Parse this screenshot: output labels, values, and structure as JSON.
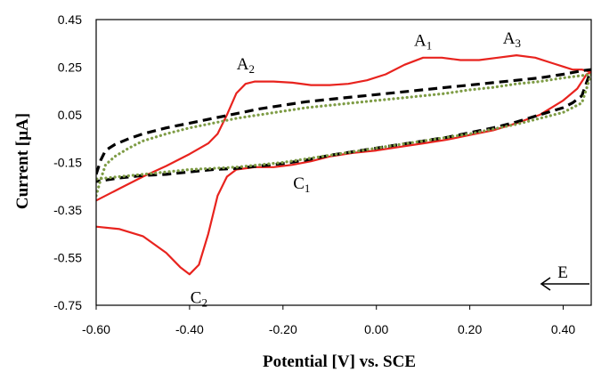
{
  "chart_data": {
    "type": "line",
    "title": "",
    "xlabel": "Potential [V] vs. SCE",
    "ylabel": "Current [µA]",
    "xlim": [
      -0.6,
      0.46
    ],
    "ylim": [
      -0.75,
      0.45
    ],
    "x_ticks": [
      "-0.60",
      "-0.40",
      "-0.20",
      "0.00",
      "0.20",
      "0.40"
    ],
    "x_tick_values": [
      -0.6,
      -0.4,
      -0.2,
      0.0,
      0.2,
      0.4
    ],
    "y_ticks": [
      "0.45",
      "0.25",
      "0.05",
      "-0.15",
      "-0.35",
      "-0.55",
      "-0.75"
    ],
    "y_tick_values": [
      0.45,
      0.25,
      0.05,
      -0.15,
      -0.35,
      -0.55,
      -0.75
    ],
    "grid": false,
    "series": [
      {
        "color": "#e8231e",
        "style": "solid",
        "points": [
          [
            -0.6,
            -0.42
          ],
          [
            -0.55,
            -0.43
          ],
          [
            -0.5,
            -0.46
          ],
          [
            -0.45,
            -0.53
          ],
          [
            -0.42,
            -0.59
          ],
          [
            -0.4,
            -0.62
          ],
          [
            -0.38,
            -0.58
          ],
          [
            -0.36,
            -0.45
          ],
          [
            -0.34,
            -0.29
          ],
          [
            -0.32,
            -0.21
          ],
          [
            -0.3,
            -0.18
          ],
          [
            -0.26,
            -0.17
          ],
          [
            -0.22,
            -0.17
          ],
          [
            -0.18,
            -0.16
          ],
          [
            -0.14,
            -0.145
          ],
          [
            -0.1,
            -0.125
          ],
          [
            -0.05,
            -0.11
          ],
          [
            0.0,
            -0.1
          ],
          [
            0.05,
            -0.085
          ],
          [
            0.1,
            -0.07
          ],
          [
            0.15,
            -0.055
          ],
          [
            0.2,
            -0.035
          ],
          [
            0.25,
            -0.015
          ],
          [
            0.3,
            0.015
          ],
          [
            0.35,
            0.05
          ],
          [
            0.4,
            0.11
          ],
          [
            0.43,
            0.16
          ],
          [
            0.45,
            0.22
          ],
          [
            0.46,
            0.23
          ],
          [
            0.44,
            0.24
          ],
          [
            0.42,
            0.24
          ],
          [
            0.38,
            0.265
          ],
          [
            0.34,
            0.29
          ],
          [
            0.3,
            0.3
          ],
          [
            0.26,
            0.29
          ],
          [
            0.22,
            0.28
          ],
          [
            0.18,
            0.28
          ],
          [
            0.14,
            0.29
          ],
          [
            0.1,
            0.29
          ],
          [
            0.06,
            0.26
          ],
          [
            0.02,
            0.22
          ],
          [
            -0.02,
            0.195
          ],
          [
            -0.06,
            0.18
          ],
          [
            -0.1,
            0.175
          ],
          [
            -0.14,
            0.175
          ],
          [
            -0.18,
            0.185
          ],
          [
            -0.22,
            0.19
          ],
          [
            -0.26,
            0.19
          ],
          [
            -0.28,
            0.18
          ],
          [
            -0.3,
            0.14
          ],
          [
            -0.32,
            0.05
          ],
          [
            -0.34,
            -0.03
          ],
          [
            -0.36,
            -0.07
          ],
          [
            -0.4,
            -0.115
          ],
          [
            -0.45,
            -0.165
          ],
          [
            -0.5,
            -0.21
          ],
          [
            -0.55,
            -0.26
          ],
          [
            -0.6,
            -0.31
          ]
        ]
      },
      {
        "color": "#000000",
        "style": "dashed",
        "points": [
          [
            -0.6,
            -0.2
          ],
          [
            -0.59,
            -0.14
          ],
          [
            -0.58,
            -0.1
          ],
          [
            -0.56,
            -0.075
          ],
          [
            -0.53,
            -0.05
          ],
          [
            -0.5,
            -0.03
          ],
          [
            -0.45,
            -0.005
          ],
          [
            -0.4,
            0.015
          ],
          [
            -0.35,
            0.035
          ],
          [
            -0.3,
            0.055
          ],
          [
            -0.25,
            0.075
          ],
          [
            -0.2,
            0.09
          ],
          [
            -0.15,
            0.105
          ],
          [
            -0.1,
            0.115
          ],
          [
            -0.05,
            0.125
          ],
          [
            0.0,
            0.135
          ],
          [
            0.05,
            0.145
          ],
          [
            0.1,
            0.155
          ],
          [
            0.15,
            0.165
          ],
          [
            0.2,
            0.175
          ],
          [
            0.25,
            0.185
          ],
          [
            0.3,
            0.195
          ],
          [
            0.35,
            0.205
          ],
          [
            0.4,
            0.22
          ],
          [
            0.44,
            0.235
          ],
          [
            0.46,
            0.24
          ],
          [
            0.44,
            0.13
          ],
          [
            0.42,
            0.1
          ],
          [
            0.4,
            0.08
          ],
          [
            0.35,
            0.05
          ],
          [
            0.3,
            0.02
          ],
          [
            0.25,
            -0.005
          ],
          [
            0.2,
            -0.025
          ],
          [
            0.15,
            -0.045
          ],
          [
            0.1,
            -0.06
          ],
          [
            0.05,
            -0.075
          ],
          [
            0.0,
            -0.09
          ],
          [
            -0.05,
            -0.105
          ],
          [
            -0.1,
            -0.12
          ],
          [
            -0.15,
            -0.14
          ],
          [
            -0.2,
            -0.155
          ],
          [
            -0.25,
            -0.165
          ],
          [
            -0.3,
            -0.175
          ],
          [
            -0.35,
            -0.18
          ],
          [
            -0.4,
            -0.19
          ],
          [
            -0.45,
            -0.2
          ],
          [
            -0.5,
            -0.205
          ],
          [
            -0.55,
            -0.215
          ],
          [
            -0.6,
            -0.23
          ]
        ]
      },
      {
        "color": "#7e9c45",
        "style": "dotted",
        "points": [
          [
            -0.6,
            -0.29
          ],
          [
            -0.59,
            -0.22
          ],
          [
            -0.58,
            -0.16
          ],
          [
            -0.56,
            -0.125
          ],
          [
            -0.53,
            -0.09
          ],
          [
            -0.5,
            -0.06
          ],
          [
            -0.45,
            -0.03
          ],
          [
            -0.4,
            -0.005
          ],
          [
            -0.35,
            0.015
          ],
          [
            -0.3,
            0.035
          ],
          [
            -0.25,
            0.05
          ],
          [
            -0.2,
            0.065
          ],
          [
            -0.15,
            0.08
          ],
          [
            -0.1,
            0.09
          ],
          [
            -0.05,
            0.1
          ],
          [
            0.0,
            0.11
          ],
          [
            0.05,
            0.12
          ],
          [
            0.1,
            0.13
          ],
          [
            0.15,
            0.14
          ],
          [
            0.2,
            0.155
          ],
          [
            0.25,
            0.165
          ],
          [
            0.3,
            0.18
          ],
          [
            0.35,
            0.19
          ],
          [
            0.4,
            0.205
          ],
          [
            0.44,
            0.215
          ],
          [
            0.46,
            0.22
          ],
          [
            0.44,
            0.1
          ],
          [
            0.42,
            0.08
          ],
          [
            0.4,
            0.06
          ],
          [
            0.35,
            0.035
          ],
          [
            0.3,
            0.01
          ],
          [
            0.25,
            -0.01
          ],
          [
            0.2,
            -0.03
          ],
          [
            0.15,
            -0.045
          ],
          [
            0.1,
            -0.06
          ],
          [
            0.05,
            -0.075
          ],
          [
            0.0,
            -0.09
          ],
          [
            -0.05,
            -0.105
          ],
          [
            -0.1,
            -0.12
          ],
          [
            -0.15,
            -0.135
          ],
          [
            -0.2,
            -0.15
          ],
          [
            -0.25,
            -0.16
          ],
          [
            -0.3,
            -0.17
          ],
          [
            -0.35,
            -0.175
          ],
          [
            -0.4,
            -0.18
          ],
          [
            -0.45,
            -0.19
          ],
          [
            -0.5,
            -0.2
          ],
          [
            -0.55,
            -0.21
          ],
          [
            -0.6,
            -0.22
          ]
        ]
      }
    ],
    "annotations": [
      {
        "main": "A",
        "sub": "1",
        "x": 0.1,
        "y": 0.34
      },
      {
        "main": "A",
        "sub": "2",
        "x": -0.28,
        "y": 0.24
      },
      {
        "main": "A",
        "sub": "3",
        "x": 0.29,
        "y": 0.35
      },
      {
        "main": "C",
        "sub": "1",
        "x": -0.16,
        "y": -0.26
      },
      {
        "main": "C",
        "sub": "2",
        "x": -0.38,
        "y": -0.74
      }
    ],
    "direction_label": "E"
  }
}
